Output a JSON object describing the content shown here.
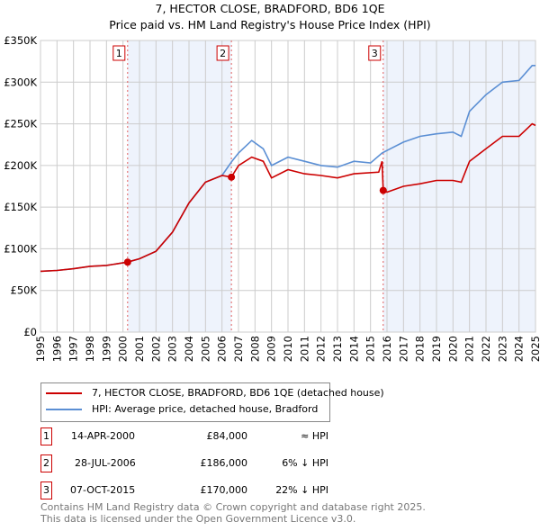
{
  "chart_data": {
    "type": "line",
    "title": "7, HECTOR CLOSE, BRADFORD, BD6 1QE",
    "subtitle": "Price paid vs. HM Land Registry's House Price Index (HPI)",
    "xlim": [
      1995,
      2025
    ],
    "ylim": [
      0,
      350000
    ],
    "x_ticks": [
      "1995",
      "1996",
      "1997",
      "1998",
      "1999",
      "2000",
      "2001",
      "2002",
      "2003",
      "2004",
      "2005",
      "2006",
      "2007",
      "2008",
      "2009",
      "2010",
      "2011",
      "2012",
      "2013",
      "2014",
      "2015",
      "2016",
      "2017",
      "2018",
      "2019",
      "2020",
      "2021",
      "2022",
      "2023",
      "2024",
      "2025"
    ],
    "y_ticks": [
      {
        "v": 0,
        "l": "£0"
      },
      {
        "v": 50000,
        "l": "£50K"
      },
      {
        "v": 100000,
        "l": "£100K"
      },
      {
        "v": 150000,
        "l": "£150K"
      },
      {
        "v": 200000,
        "l": "£200K"
      },
      {
        "v": 250000,
        "l": "£250K"
      },
      {
        "v": 300000,
        "l": "£300K"
      },
      {
        "v": 350000,
        "l": "£350K"
      }
    ],
    "grid": true,
    "series": [
      {
        "name": "7, HECTOR CLOSE, BRADFORD, BD6 1QE (detached house)",
        "color": "#cc0000",
        "x": [
          1995,
          1996,
          1997,
          1998,
          1999,
          2000.28,
          2001,
          2002,
          2003,
          2004,
          2005,
          2006,
          2006.57,
          2007,
          2007.8,
          2008.5,
          2009,
          2010,
          2011,
          2012,
          2013,
          2014,
          2015.5,
          2015.7,
          2015.77,
          2016,
          2017,
          2018,
          2019,
          2020,
          2020.5,
          2021,
          2022,
          2023,
          2024,
          2024.8,
          2025
        ],
        "y": [
          73000,
          74000,
          76000,
          79000,
          80000,
          84000,
          88000,
          97000,
          120000,
          155000,
          180000,
          188000,
          186000,
          200000,
          210000,
          205000,
          185000,
          195000,
          190000,
          188000,
          185000,
          190000,
          192000,
          205000,
          170000,
          168000,
          175000,
          178000,
          182000,
          182000,
          180000,
          205000,
          220000,
          235000,
          235000,
          250000,
          248000
        ]
      },
      {
        "name": "HPI: Average price, detached house, Bradford",
        "color": "#5b8fd4",
        "x": [
          1995,
          1996,
          1997,
          1998,
          1999,
          2000.28,
          2001,
          2002,
          2003,
          2004,
          2005,
          2006,
          2006.6,
          2007,
          2007.8,
          2008.5,
          2009,
          2010,
          2011,
          2012,
          2013,
          2014,
          2015,
          2015.7,
          2016,
          2017,
          2018,
          2019,
          2020,
          2020.5,
          2021,
          2022,
          2023,
          2024,
          2024.8,
          2025
        ],
        "y": [
          73000,
          74000,
          76000,
          79000,
          80000,
          84000,
          88000,
          97000,
          120000,
          155000,
          180000,
          188000,
          205000,
          215000,
          230000,
          220000,
          200000,
          210000,
          205000,
          200000,
          198000,
          205000,
          203000,
          215000,
          218000,
          228000,
          235000,
          238000,
          240000,
          235000,
          265000,
          285000,
          300000,
          302000,
          320000,
          320000
        ]
      }
    ],
    "sales": [
      {
        "id": "1",
        "x": 2000.28,
        "y": 84000,
        "date": "14-APR-2000",
        "price": "£84,000",
        "hpi": "≈ HPI"
      },
      {
        "id": "2",
        "x": 2006.57,
        "y": 186000,
        "date": "28-JUL-2006",
        "price": "£186,000",
        "hpi": "6% ↓ HPI"
      },
      {
        "id": "3",
        "x": 2015.77,
        "y": 170000,
        "date": "07-OCT-2015",
        "price": "£170,000",
        "hpi": "22% ↓ HPI"
      }
    ],
    "legend_placement": "below"
  },
  "footer": {
    "line1": "Contains HM Land Registry data © Crown copyright and database right 2025.",
    "line2": "This data is licensed under the Open Government Licence v3.0."
  }
}
